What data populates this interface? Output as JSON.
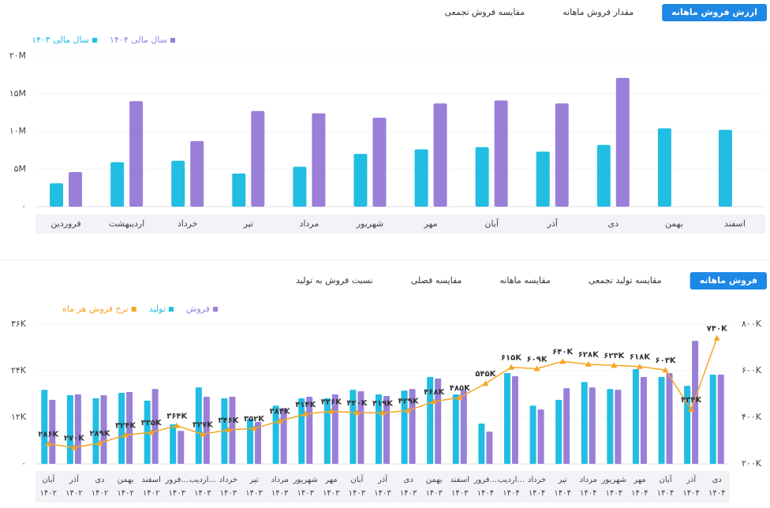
{
  "tabs_top": [
    "ارزش فروش ماهانه",
    "مقدار فروش ماهانه",
    "مقایسه فروش تجمعی"
  ],
  "tabs_bottom": [
    "فروش ماهانه",
    "مقایسه تولید تجمعی",
    "مقایسه ماهانه",
    "مقایسه فصلی",
    "نسبت فروش به تولید"
  ],
  "chart_data": [
    {
      "type": "bar",
      "categories": [
        "فروردین",
        "اردیبهشت",
        "خرداد",
        "تیر",
        "مرداد",
        "شهریور",
        "مهر",
        "آبان",
        "آذر",
        "دی",
        "بهمن",
        "اسفند"
      ],
      "series": [
        {
          "name": "سال مالی ۱۴۰۳",
          "color": "#22bde3",
          "values": [
            3.1,
            5.9,
            6.1,
            4.4,
            5.3,
            7.0,
            7.6,
            7.9,
            7.3,
            8.2,
            10.4,
            10.2
          ]
        },
        {
          "name": "سال مالی ۱۴۰۴",
          "color": "#9a7fd8",
          "values": [
            4.6,
            14.0,
            8.7,
            12.7,
            12.4,
            11.8,
            13.7,
            14.1,
            13.7,
            17.1,
            null,
            null
          ]
        }
      ],
      "ylim": [
        0,
        20
      ],
      "yticks": [
        {
          "value": 0,
          "label": "۰"
        },
        {
          "value": 5,
          "label": "۵M"
        },
        {
          "value": 10,
          "label": "۱۰M"
        },
        {
          "value": 15,
          "label": "۱۵M"
        },
        {
          "value": 20,
          "label": "۲۰M"
        }
      ],
      "grid": true
    },
    {
      "type": "combo",
      "categories": [
        [
          "آبان",
          "۱۴۰۲"
        ],
        [
          "آذر",
          "۱۴۰۲"
        ],
        [
          "دی",
          "۱۴۰۲"
        ],
        [
          "بهمن",
          "۱۴۰۲"
        ],
        [
          "اسفند",
          "۱۴۰۲"
        ],
        [
          "فرور...",
          "۱۴۰۳"
        ],
        [
          "اردیب...",
          "۱۴۰۳"
        ],
        [
          "خرداد",
          "۱۴۰۳"
        ],
        [
          "تیر",
          "۱۴۰۳"
        ],
        [
          "مرداد",
          "۱۴۰۳"
        ],
        [
          "شهریور",
          "۱۴۰۳"
        ],
        [
          "مهر",
          "۱۴۰۳"
        ],
        [
          "آبان",
          "۱۴۰۳"
        ],
        [
          "آذر",
          "۱۴۰۳"
        ],
        [
          "دی",
          "۱۴۰۳"
        ],
        [
          "بهمن",
          "۱۴۰۳"
        ],
        [
          "اسفند",
          "۱۴۰۳"
        ],
        [
          "فرور...",
          "۱۴۰۴"
        ],
        [
          "اردیب...",
          "۱۴۰۴"
        ],
        [
          "خرداد",
          "۱۴۰۴"
        ],
        [
          "تیر",
          "۱۴۰۴"
        ],
        [
          "مرداد",
          "۱۴۰۴"
        ],
        [
          "شهریور",
          "۱۴۰۴"
        ],
        [
          "مهر",
          "۱۴۰۴"
        ],
        [
          "آبان",
          "۱۴۰۴"
        ],
        [
          "آذر",
          "۱۴۰۴"
        ],
        [
          "دی",
          "۱۴۰۴"
        ]
      ],
      "series": [
        {
          "name": "فروش",
          "type": "bar",
          "color": "#9a7fd8",
          "values": [
            16.5,
            17.9,
            17.7,
            18.5,
            19.3,
            8.5,
            17.3,
            17.3,
            10.8,
            14.4,
            17.3,
            17.9,
            18.7,
            17.5,
            19.3,
            22.0,
            18.9,
            8.3,
            22.6,
            14.0,
            19.5,
            19.7,
            19.1,
            22.4,
            23.4,
            31.7,
            23.0
          ]
        },
        {
          "name": "تولید",
          "type": "bar",
          "color": "#22bde3",
          "values": [
            19.1,
            17.7,
            16.9,
            18.3,
            16.3,
            10.2,
            19.7,
            16.9,
            11.6,
            15.0,
            16.9,
            16.9,
            19.1,
            17.9,
            18.9,
            22.4,
            17.9,
            10.4,
            23.4,
            15.0,
            16.5,
            21.1,
            19.3,
            24.4,
            22.4,
            20.1,
            23.0
          ]
        },
        {
          "name": "نرخ فروش هر ماه",
          "type": "line",
          "axis": "y2",
          "color": "#f5a623",
          "values": [
            286,
            270,
            289,
            324,
            335,
            364,
            327,
            346,
            352,
            384,
            414,
            426,
            420,
            419,
            429,
            468,
            485,
            545,
            615,
            609,
            640,
            628,
            623,
            618,
            603,
            434,
            740
          ],
          "value_labels": [
            "۲۸۶K",
            "۲۷۰K",
            "۲۸۹K",
            "۳۲۴K",
            "۳۳۵K",
            "۳۶۴K",
            "۳۲۷K",
            "۳۴۶K",
            "۳۵۲K",
            "۳۸۴K",
            "۴۱۴K",
            "۴۲۶K",
            "۴۲۰K",
            "۴۱۹K",
            "۴۲۹K",
            "۴۶۸K",
            "۴۸۵K",
            "۵۴۵K",
            "۶۱۵K",
            "۶۰۹K",
            "۶۴۰K",
            "۶۲۸K",
            "۶۲۳K",
            "۶۱۸K",
            "۶۰۳K",
            "۴۳۴K",
            "۷۴۰K"
          ]
        }
      ],
      "ylim": [
        0,
        36
      ],
      "yticks": [
        {
          "value": 0,
          "label": "۰"
        },
        {
          "value": 12,
          "label": "۱۲K"
        },
        {
          "value": 24,
          "label": "۲۴K"
        },
        {
          "value": 36,
          "label": "۳۶K"
        }
      ],
      "y2lim": [
        200,
        800
      ],
      "y2ticks": [
        {
          "value": 200,
          "label": "۲۰۰K"
        },
        {
          "value": 400,
          "label": "۴۰۰K"
        },
        {
          "value": 600,
          "label": "۶۰۰K"
        },
        {
          "value": 800,
          "label": "۸۰۰K"
        }
      ],
      "grid": true
    }
  ]
}
